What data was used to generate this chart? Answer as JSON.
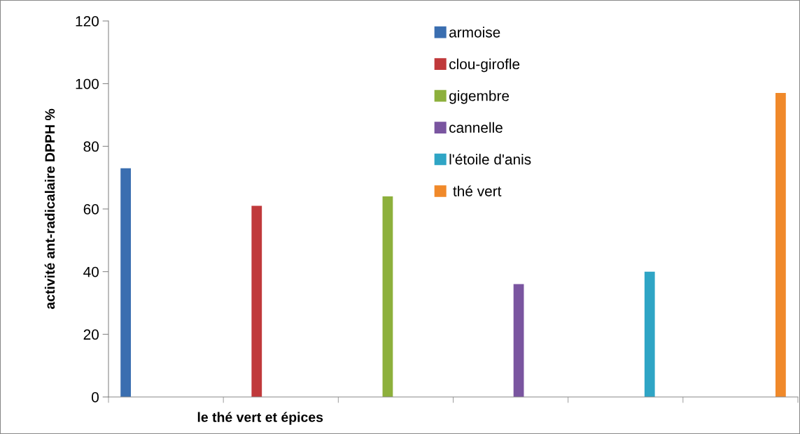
{
  "chart_data": {
    "type": "bar",
    "xlabel": "le thé vert et épices",
    "ylabel": "activité ant-radicalaire DPPH %",
    "categories": [
      null,
      null,
      null,
      null,
      null,
      null
    ],
    "series": [
      {
        "name": "armoise",
        "color": "#3a6eb0",
        "values": [
          73,
          null,
          null,
          null,
          null,
          null
        ]
      },
      {
        "name": "clou-girofle",
        "color": "#c0393b",
        "values": [
          null,
          61,
          null,
          null,
          null,
          null
        ]
      },
      {
        "name": "gigembre",
        "color": "#8db03c",
        "values": [
          null,
          null,
          64,
          null,
          null,
          null
        ]
      },
      {
        "name": "cannelle",
        "color": "#7a55a0",
        "values": [
          null,
          null,
          null,
          36,
          null,
          null
        ]
      },
      {
        "name": "l'étoile d'anis",
        "color": "#2fa5c5",
        "values": [
          null,
          null,
          null,
          null,
          40,
          null
        ]
      },
      {
        "name": " thé vert",
        "color": "#f0892a",
        "values": [
          null,
          null,
          null,
          null,
          null,
          97
        ]
      }
    ],
    "ylim": [
      0,
      120
    ],
    "yticks": [
      0,
      20,
      40,
      60,
      80,
      100,
      120
    ],
    "grid": false,
    "legend": "top"
  }
}
